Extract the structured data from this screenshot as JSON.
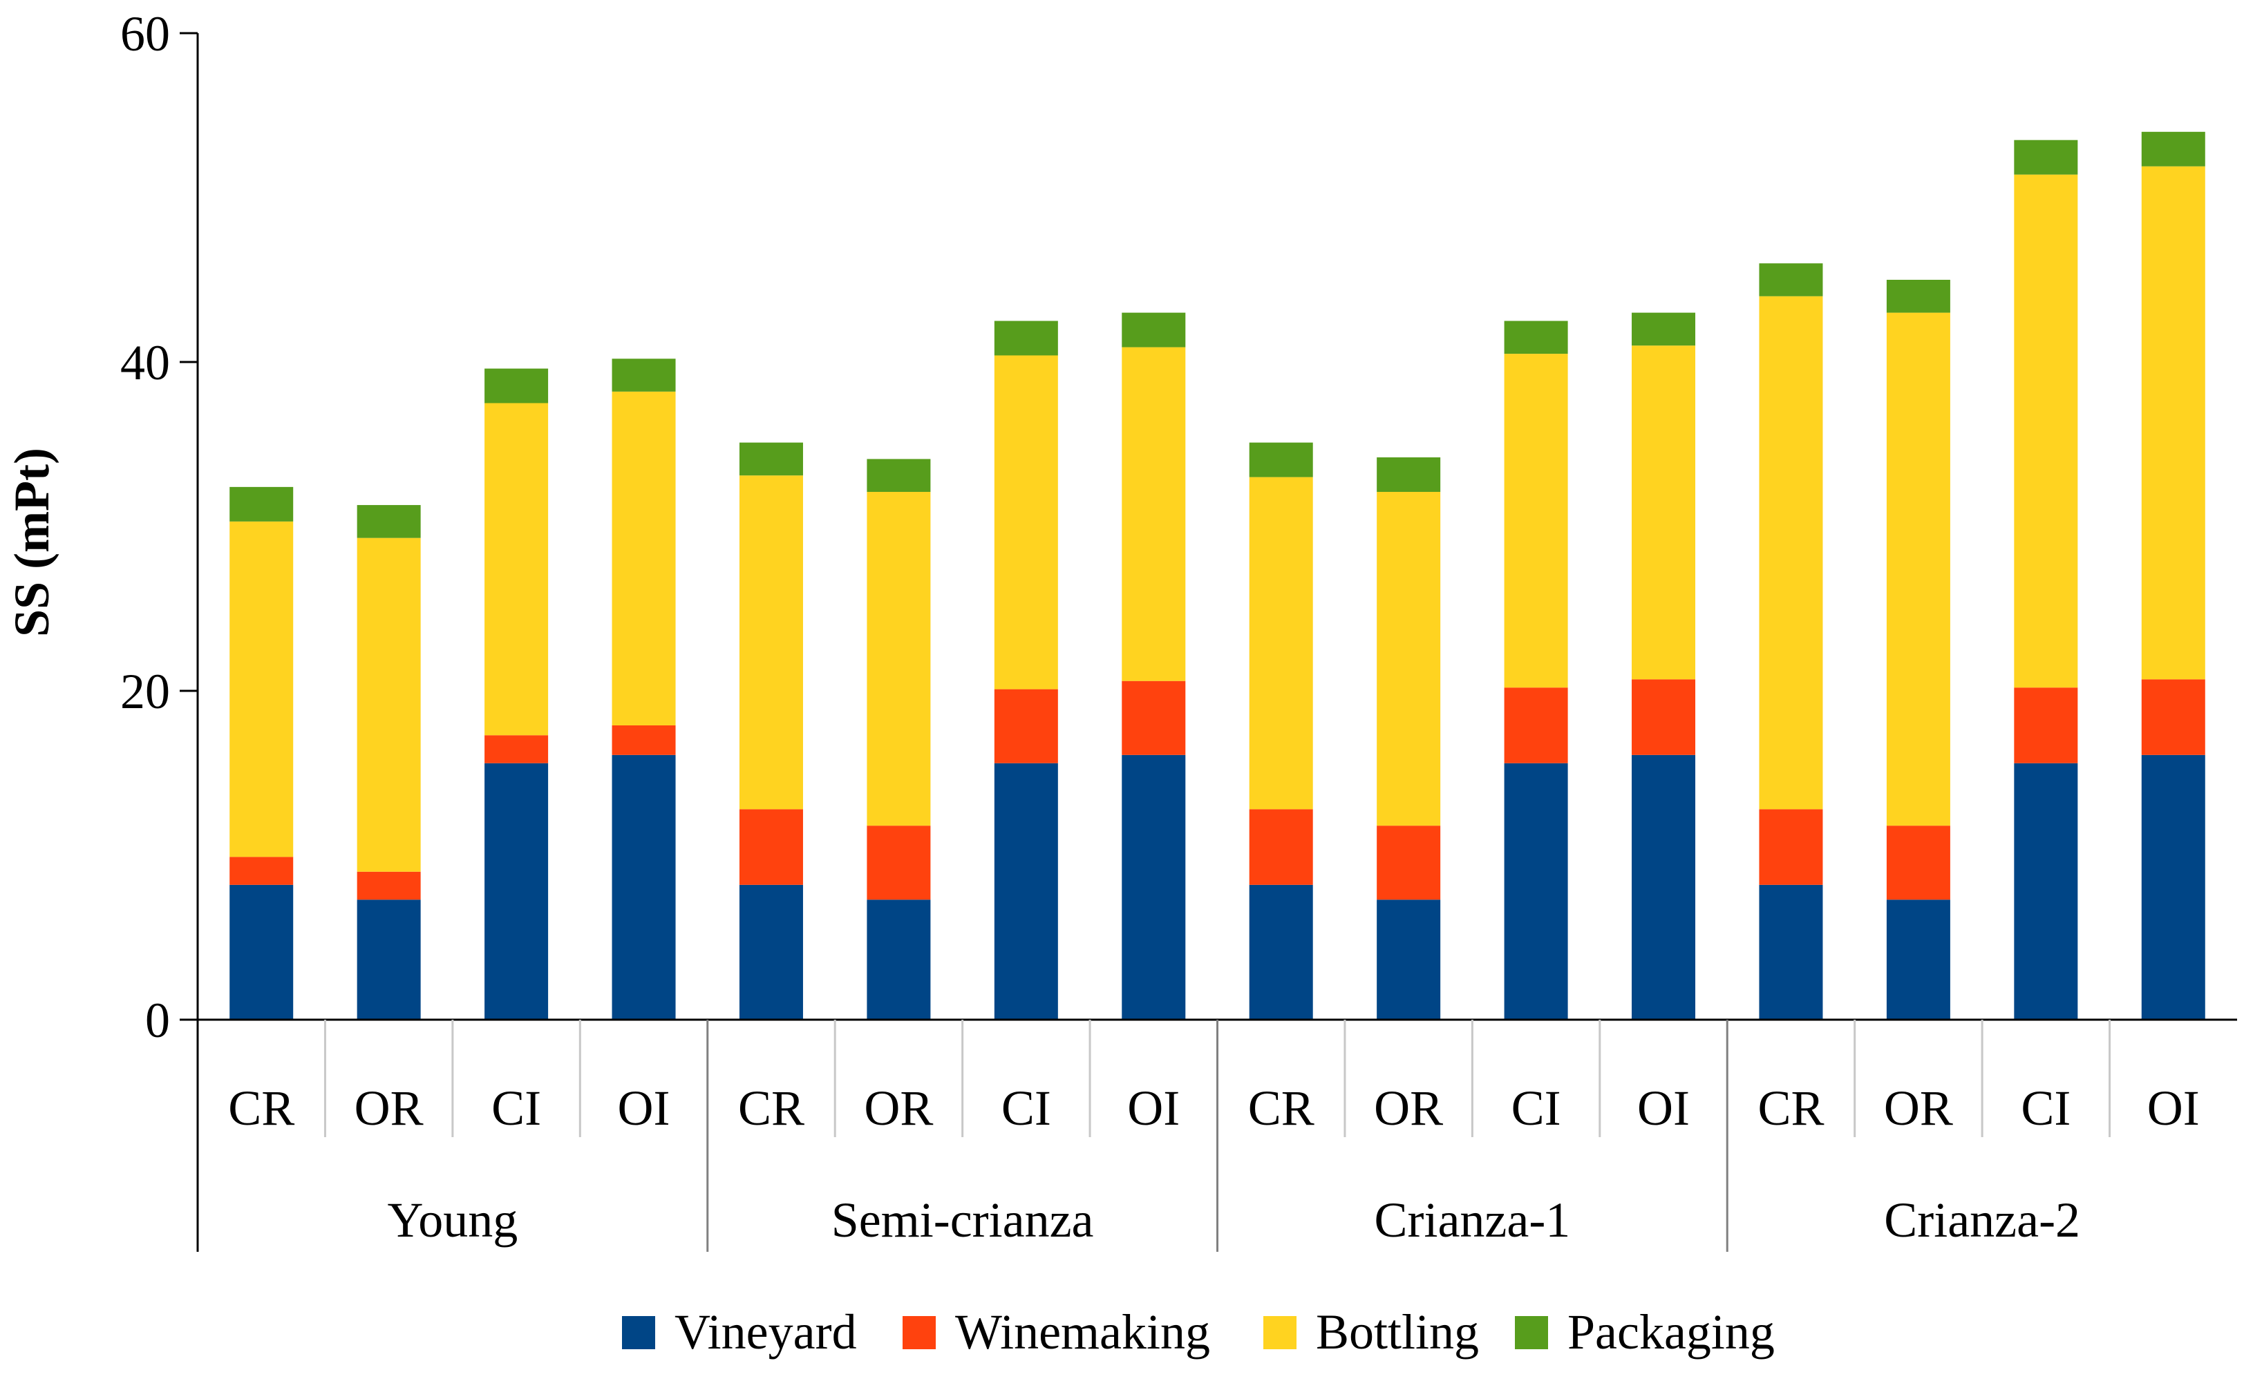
{
  "chart_data": {
    "type": "bar",
    "stacked": true,
    "title": "",
    "xlabel": "",
    "ylabel": "SS (mPt)",
    "ylim": [
      0,
      60
    ],
    "yticks": [
      0,
      20,
      40,
      60
    ],
    "grid": false,
    "legend_position": "bottom",
    "groups": [
      "Young",
      "Semi-crianza",
      "Crianza-1",
      "Crianza-2"
    ],
    "categories": [
      "CR",
      "OR",
      "CI",
      "OI",
      "CR",
      "OR",
      "CI",
      "OI",
      "CR",
      "OR",
      "CI",
      "OI",
      "CR",
      "OR",
      "CI",
      "OI"
    ],
    "series": [
      {
        "name": "Vineyard",
        "color": "#004586",
        "values": [
          8.2,
          7.3,
          15.6,
          16.1,
          8.2,
          7.3,
          15.6,
          16.1,
          8.2,
          7.3,
          15.6,
          16.1,
          8.2,
          7.3,
          15.6,
          16.1
        ]
      },
      {
        "name": "Winemaking",
        "color": "#ff420e",
        "values": [
          1.7,
          1.7,
          1.7,
          1.8,
          4.6,
          4.5,
          4.5,
          4.5,
          4.6,
          4.5,
          4.6,
          4.6,
          4.6,
          4.5,
          4.6,
          4.6
        ]
      },
      {
        "name": "Bottling",
        "color": "#ffd320",
        "values": [
          20.4,
          20.3,
          20.2,
          20.3,
          20.3,
          20.3,
          20.3,
          20.3,
          20.2,
          20.3,
          20.3,
          20.3,
          31.2,
          31.2,
          31.2,
          31.2
        ]
      },
      {
        "name": "Packaging",
        "color": "#579d1c",
        "values": [
          2.1,
          2.0,
          2.1,
          2.0,
          2.0,
          2.0,
          2.1,
          2.1,
          2.1,
          2.1,
          2.0,
          2.0,
          2.0,
          2.0,
          2.1,
          2.1
        ]
      }
    ]
  }
}
